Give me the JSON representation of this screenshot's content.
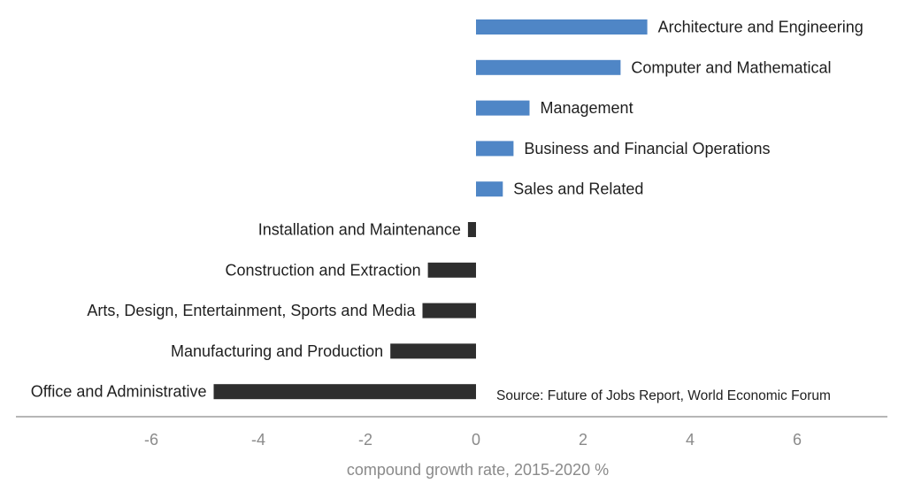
{
  "chart_data": {
    "type": "bar",
    "orientation": "horizontal",
    "categories": [
      "Architecture and Engineering",
      "Computer and Mathematical",
      "Management",
      "Business and Financial Operations",
      "Sales and Related",
      "Installation and Maintenance",
      "Construction and Extraction",
      "Arts, Design, Entertainment, Sports and Media",
      "Manufacturing and Production",
      "Office and Administrative"
    ],
    "values": [
      3.2,
      2.7,
      1.0,
      0.7,
      0.5,
      -0.15,
      -0.9,
      -1.0,
      -1.6,
      -4.9
    ],
    "xlabel": "compound growth rate, 2015-2020 %",
    "ylabel": "",
    "xlim": [
      -8.5,
      7.7
    ],
    "xticks": [
      -6,
      -4,
      -2,
      0,
      2,
      4,
      6
    ],
    "xtick_labels": [
      "-6",
      "-4",
      "-2",
      "0",
      "2",
      "4",
      "6"
    ],
    "grid": false,
    "source_note": "Source: Future of Jobs Report, World Economic Forum",
    "colors": {
      "positive": "#4f86c6",
      "negative": "#2e2e2e",
      "axis": "#8a8a8a"
    }
  }
}
